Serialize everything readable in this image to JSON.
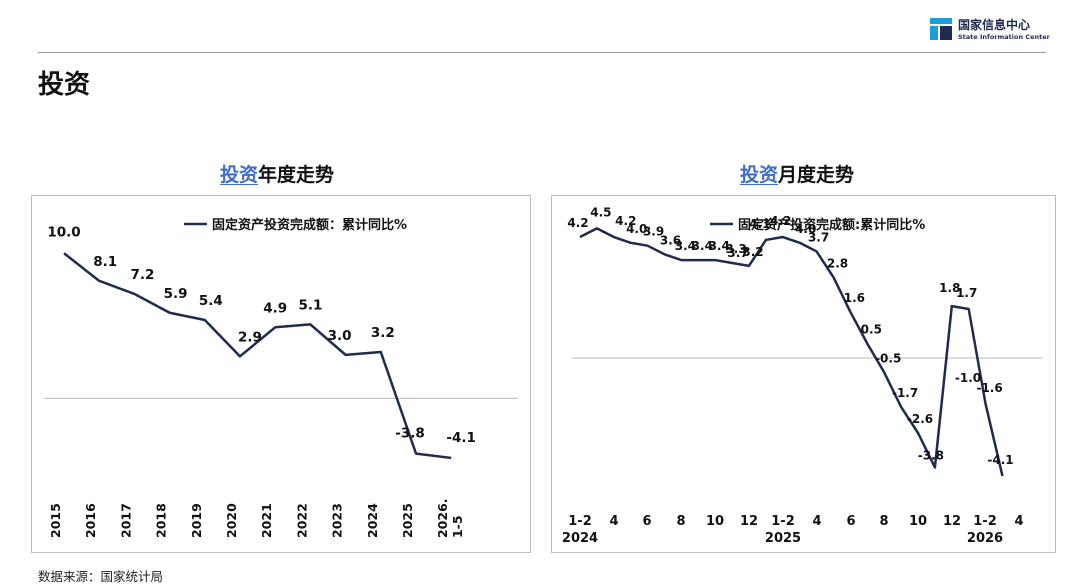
{
  "header": {
    "logo": {
      "name_cn": "国家信息中心",
      "name_en": "State Information Center",
      "colors": [
        "#1aa0d8",
        "#1f2b4f"
      ]
    }
  },
  "page": {
    "title": "投资",
    "source": "数据来源：国家统计局"
  },
  "charts": {
    "left": {
      "title_highlight": "投资",
      "title_rest": "年度走势"
    },
    "right": {
      "title_highlight": "投资",
      "title_rest": "月度走势"
    }
  },
  "chart_data": [
    {
      "type": "line",
      "title": "投资年度走势",
      "legend": "固定资产投资完成额：累计同比%",
      "legend_position": "top-center",
      "categories": [
        "2015",
        "2016",
        "2017",
        "2018",
        "2019",
        "2020",
        "2021",
        "2022",
        "2023",
        "2024",
        "2025",
        "2026.1-5"
      ],
      "series": [
        {
          "name": "固定资产投资完成额：累计同比%",
          "color": "#1f2b4f",
          "values": [
            10.0,
            8.1,
            7.2,
            5.9,
            5.4,
            2.9,
            4.9,
            5.1,
            3.0,
            3.2,
            -3.8,
            -4.1
          ]
        }
      ],
      "labels": [
        "10.0",
        "8.1",
        "7.2",
        "5.9",
        "5.4",
        "2.9",
        "4.9",
        "5.1",
        "3.0",
        "3.2",
        "-3.8",
        "-4.1"
      ],
      "ylim": [
        -5,
        10.5
      ],
      "grid": false,
      "zero_line": true
    },
    {
      "type": "line",
      "title": "投资月度走势",
      "legend": "固定资产投资完成额:累计同比%",
      "legend_position": "top-center",
      "x": [
        "2024-02",
        "2024-03",
        "2024-04",
        "2024-05",
        "2024-06",
        "2024-07",
        "2024-08",
        "2024-09",
        "2024-10",
        "2024-11",
        "2024-12",
        "2025-02",
        "2025-03",
        "2025-04",
        "2025-05",
        "2025-06",
        "2025-07",
        "2025-08",
        "2025-09",
        "2025-10",
        "2025-11",
        "2025-12",
        "2026-02",
        "2026-03",
        "2026-04",
        "2026-05"
      ],
      "tick_labels": [
        "1-2",
        "4",
        "6",
        "8",
        "10",
        "12",
        "1-2",
        "4",
        "6",
        "8",
        "10",
        "12",
        "1-2",
        "4"
      ],
      "year_labels": [
        "2024",
        "2025",
        "2026"
      ],
      "series": [
        {
          "name": "固定资产投资完成额:累计同比%",
          "color": "#1f2b4f",
          "values": [
            4.2,
            4.5,
            4.2,
            4.0,
            3.9,
            3.6,
            3.4,
            3.4,
            3.4,
            3.3,
            3.2,
            4.1,
            4.2,
            4.0,
            3.7,
            2.8,
            1.6,
            0.5,
            -0.5,
            -1.7,
            -2.6,
            -3.8,
            1.8,
            1.7,
            -1.6,
            -4.1
          ]
        }
      ],
      "labels": [
        "4.2",
        "4.5",
        "4.2",
        "4.0",
        "3.9",
        "3.6",
        "3.4",
        "3.4",
        "3.4",
        "3.3",
        "3.2",
        "4.1",
        "4.2",
        "4.0",
        "3.7",
        "2.8",
        "1.6",
        "0.5",
        "-0.5",
        "-1.7",
        "-2.6",
        "-3.8",
        "1.8",
        "1.7",
        "-1.6",
        "-4.1"
      ],
      "extra_labels": [
        {
          "text": "3.7",
          "after_index": 10
        },
        {
          "text": "-1.0",
          "after_index": 21
        }
      ],
      "ylim": [
        -5,
        5
      ],
      "grid": false,
      "zero_line": true
    }
  ]
}
